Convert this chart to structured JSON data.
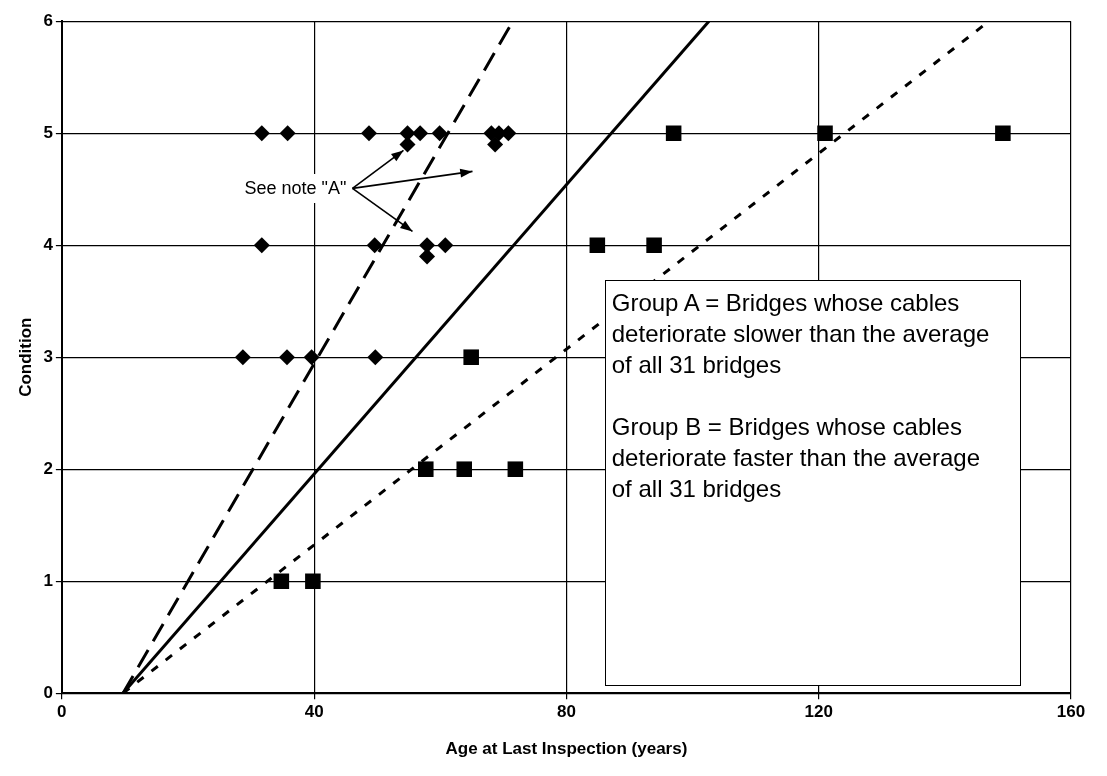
{
  "chart_data": {
    "type": "scatter",
    "xlabel": "Age at Last Inspection (years)",
    "ylabel": "Condition",
    "xlim": [
      0,
      160
    ],
    "xticks": [
      0,
      40,
      80,
      120,
      160
    ],
    "ylim": [
      0,
      6
    ],
    "yticks": [
      0,
      1,
      2,
      3,
      4,
      5,
      6
    ],
    "grid": true,
    "legend": false,
    "series": [
      {
        "marker": "diamond",
        "color": "#000000",
        "x": [
          31.7,
          35.8,
          48.7,
          54.8,
          56.8,
          59.9,
          68.1,
          69.3,
          70.8,
          54.8,
          68.7,
          31.7,
          49.6,
          57.9,
          60.8,
          57.9,
          28.7,
          35.7,
          39.6,
          49.7
        ],
        "values": [
          5,
          5,
          5,
          5,
          5,
          5,
          5,
          5,
          5,
          4.9,
          4.9,
          4,
          4,
          4,
          4,
          3.9,
          3,
          3,
          3,
          3
        ]
      },
      {
        "marker": "square",
        "color": "#000000",
        "x": [
          34.8,
          39.8,
          57.7,
          63.8,
          71.9,
          64.9,
          84.9,
          93.9,
          97,
          121,
          149.2
        ],
        "values": [
          1,
          1,
          2,
          2,
          2,
          3,
          4,
          4,
          5,
          5,
          5
        ]
      },
      {
        "type": "line",
        "marker": "none",
        "line_style": "dashed",
        "color": "#000000",
        "x": [
          9.7,
          71.5
        ],
        "values": [
          0,
          6
        ]
      },
      {
        "type": "line",
        "marker": "none",
        "line_style": "solid",
        "color": "#000000",
        "x": [
          9.7,
          102.6
        ],
        "values": [
          0,
          6
        ]
      },
      {
        "type": "line",
        "marker": "none",
        "line_style": "dotted",
        "color": "#000000",
        "x": [
          9.7,
          147
        ],
        "values": [
          0,
          6
        ]
      }
    ],
    "annotations": [
      {
        "text": "See note \"A\"",
        "x": 54.8,
        "y": 4.9
      },
      "Group A = Bridges whose cables deteriorate slower than the average of all 31 bridges",
      "Group B = Bridges whose cables deteriorate faster than the average of all 31 bridges"
    ]
  }
}
